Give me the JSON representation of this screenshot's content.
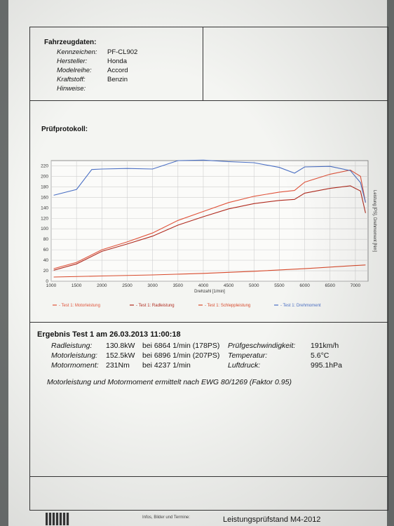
{
  "vehicle": {
    "title": "Fahrzeugdaten:",
    "rows": [
      {
        "label": "Kennzeichen:",
        "value": "PF-CL902"
      },
      {
        "label": "Hersteller:",
        "value": "Honda"
      },
      {
        "label": "Modelreihe:",
        "value": "Accord"
      },
      {
        "label": "Kraftstoff:",
        "value": "Benzin"
      },
      {
        "label": "Hinweise:",
        "value": ""
      }
    ]
  },
  "protocol_title": "Prüfprotokoll:",
  "chart_data": {
    "type": "line",
    "xlabel": "Drehzahl [1/min]",
    "ylabel": "Leistung [PS], Drehmoment [Nm]",
    "xlim": [
      1000,
      7250
    ],
    "ylim": [
      0,
      230
    ],
    "x_ticks": [
      1000,
      1500,
      2000,
      2500,
      3000,
      3500,
      4000,
      4500,
      5000,
      5500,
      6000,
      6500,
      7000
    ],
    "y_ticks": [
      0,
      20,
      40,
      60,
      80,
      100,
      120,
      140,
      160,
      180,
      200,
      220
    ],
    "grid": true,
    "legend_position": "bottom",
    "series": [
      {
        "name": "Test 1: Motorleistung",
        "color": "#e0533a",
        "x": [
          1050,
          1500,
          2000,
          2500,
          3000,
          3500,
          4000,
          4500,
          5000,
          5500,
          5800,
          6000,
          6500,
          6900,
          7100,
          7200
        ],
        "y": [
          24,
          36,
          60,
          75,
          92,
          116,
          133,
          150,
          162,
          170,
          173,
          189,
          204,
          212,
          200,
          150
        ]
      },
      {
        "name": "Test 1: Radleistung",
        "color": "#b02a1e",
        "x": [
          1050,
          1500,
          2000,
          2500,
          3000,
          3500,
          4000,
          4500,
          5000,
          5500,
          5800,
          6000,
          6500,
          6900,
          7100,
          7200
        ],
        "y": [
          21,
          33,
          57,
          71,
          86,
          107,
          123,
          138,
          148,
          154,
          156,
          168,
          177,
          182,
          172,
          130
        ]
      },
      {
        "name": "Test 1: Schleppleistung",
        "color": "#d84a2c",
        "x": [
          1050,
          2000,
          3000,
          4000,
          5000,
          6000,
          7000,
          7200
        ],
        "y": [
          8,
          10,
          12,
          15,
          19,
          24,
          30,
          31
        ]
      },
      {
        "name": "Test 1: Drehmoment",
        "color": "#4a6fc4",
        "x": [
          1050,
          1500,
          1800,
          2000,
          2500,
          3000,
          3500,
          4000,
          4500,
          5000,
          5500,
          5800,
          6000,
          6500,
          6900,
          7100,
          7200
        ],
        "y": [
          164,
          175,
          213,
          214,
          215,
          214,
          230,
          231,
          228,
          226,
          217,
          206,
          218,
          219,
          211,
          188,
          150
        ]
      }
    ]
  },
  "result": {
    "title": "Ergebnis Test 1 am 26.03.2013 11:00:18",
    "rows": [
      {
        "label": "Radleistung:",
        "value": "130.8kW",
        "at": "bei 6864 1/min (178PS)",
        "label2": "Prüfgeschwindigkeit:",
        "value2": "191km/h"
      },
      {
        "label": "Motorleistung:",
        "value": "152.5kW",
        "at": "bei 6896 1/min (207PS)",
        "label2": "Temperatur:",
        "value2": "5.6°C"
      },
      {
        "label": "Motormoment:",
        "value": "231Nm",
        "at": "bei 4237 1/min",
        "label2": "Luftdruck:",
        "value2": "995.1hPa"
      }
    ],
    "note": "Motorleistung und Motormoment ermittelt nach EWG 80/1269 (Faktor 0.95)"
  },
  "footer": {
    "info": "Infos, Bilder und Termine:",
    "title": "Leistungsprüfstand M4-2012"
  }
}
